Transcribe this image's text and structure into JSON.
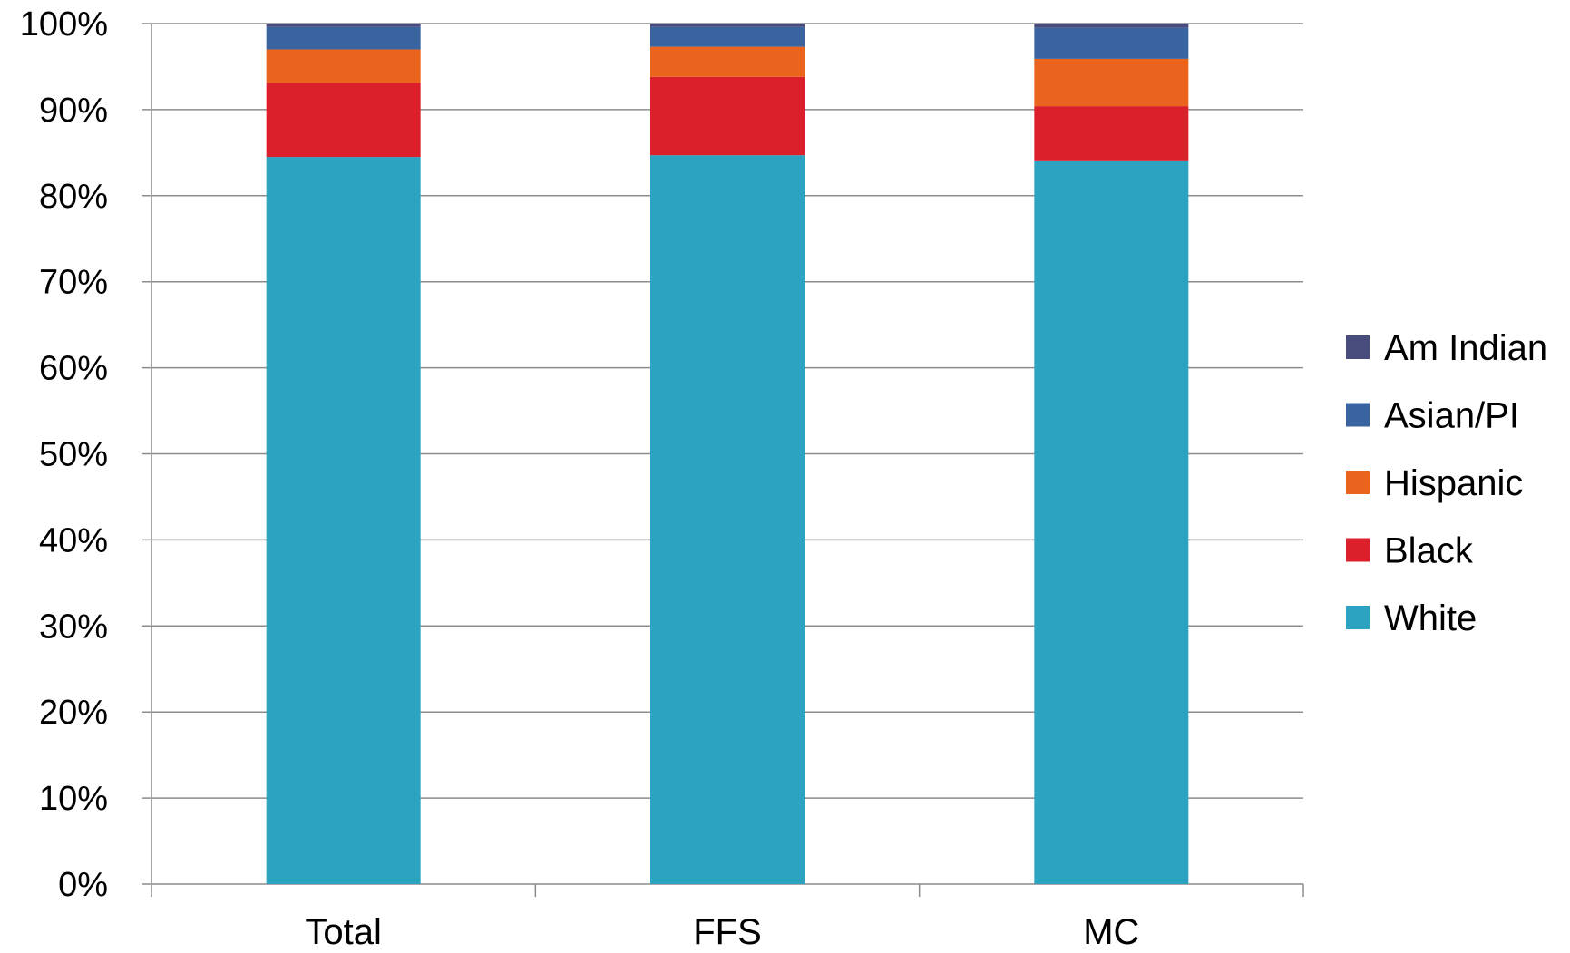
{
  "chart_data": {
    "type": "bar",
    "stacked": true,
    "title": "",
    "xlabel": "",
    "ylabel": "",
    "categories": [
      "Total",
      "FFS",
      "MC"
    ],
    "ylim": [
      0,
      100
    ],
    "yticks": [
      0,
      10,
      20,
      30,
      40,
      50,
      60,
      70,
      80,
      90,
      100
    ],
    "ytick_labels": [
      "0%",
      "10%",
      "20%",
      "30%",
      "40%",
      "50%",
      "60%",
      "70%",
      "80%",
      "90%",
      "100%"
    ],
    "grid": true,
    "legend_position": "right",
    "series": [
      {
        "name": "White",
        "color": "#2CA3C1",
        "values": [
          84.5,
          84.7,
          84.0
        ]
      },
      {
        "name": "Black",
        "color": "#DC202B",
        "values": [
          8.6,
          9.1,
          6.4
        ]
      },
      {
        "name": "Hispanic",
        "color": "#EB641E",
        "values": [
          3.9,
          3.5,
          5.5
        ]
      },
      {
        "name": "Asian/PI",
        "color": "#3964A0",
        "values": [
          2.6,
          2.3,
          3.6
        ]
      },
      {
        "name": "Am Indian",
        "color": "#474C7D",
        "values": [
          0.4,
          0.4,
          0.5
        ]
      }
    ]
  }
}
